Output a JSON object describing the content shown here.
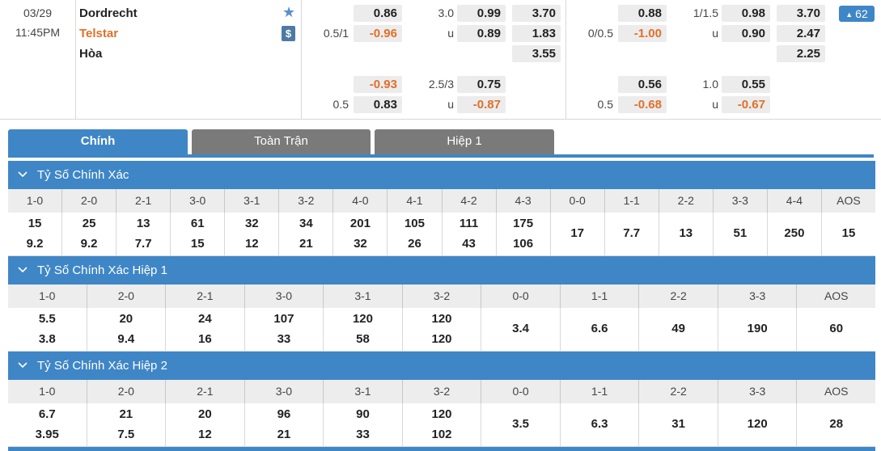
{
  "match": {
    "date": "03/29",
    "time": "11:45PM",
    "home": "Dordrecht",
    "away": "Telstar",
    "draw": "Hòa",
    "more_count": "62"
  },
  "odds": {
    "g1": {
      "r1": {
        "v1": "0.86",
        "lbl": "3.0",
        "v2": "0.99",
        "v3": "3.70"
      },
      "r2": {
        "lbl0": "0.5/1",
        "v1": "-0.96",
        "lbl": "u",
        "v2": "0.89",
        "v3": "1.83"
      },
      "r3": {
        "v3": "3.55"
      },
      "r4": {
        "v1": "-0.93",
        "lbl": "2.5/3",
        "v2": "0.75"
      },
      "r5": {
        "lbl0": "0.5",
        "v1": "0.83",
        "lbl": "u",
        "v2": "-0.87"
      }
    },
    "g2": {
      "r1": {
        "v1": "0.88",
        "lbl": "1/1.5",
        "v2": "0.98",
        "v3": "3.70"
      },
      "r2": {
        "lbl0": "0/0.5",
        "v1": "-1.00",
        "lbl": "u",
        "v2": "0.90",
        "v3": "2.47"
      },
      "r3": {
        "v3": "2.25"
      },
      "r4": {
        "v1": "0.56",
        "lbl": "1.0",
        "v2": "0.55"
      },
      "r5": {
        "lbl0": "0.5",
        "v1": "-0.68",
        "lbl": "u",
        "v2": "-0.67"
      }
    }
  },
  "tabs": [
    "Chính",
    "Toàn Trận",
    "Hiệp 1"
  ],
  "sections": [
    {
      "title": "Tỷ Số Chính Xác",
      "headers": [
        "1-0",
        "2-0",
        "2-1",
        "3-0",
        "3-1",
        "3-2",
        "4-0",
        "4-1",
        "4-2",
        "4-3",
        "0-0",
        "1-1",
        "2-2",
        "3-3",
        "4-4",
        "AOS"
      ],
      "values": [
        [
          "15",
          "9.2"
        ],
        [
          "25",
          "9.2"
        ],
        [
          "13",
          "7.7"
        ],
        [
          "61",
          "15"
        ],
        [
          "32",
          "12"
        ],
        [
          "34",
          "21"
        ],
        [
          "201",
          "32"
        ],
        [
          "105",
          "26"
        ],
        [
          "111",
          "43"
        ],
        [
          "175",
          "106"
        ],
        [
          "17"
        ],
        [
          "7.7"
        ],
        [
          "13"
        ],
        [
          "51"
        ],
        [
          "250"
        ],
        [
          "15"
        ]
      ]
    },
    {
      "title": "Tỷ Số Chính Xác Hiệp 1",
      "headers": [
        "1-0",
        "2-0",
        "2-1",
        "3-0",
        "3-1",
        "3-2",
        "0-0",
        "1-1",
        "2-2",
        "3-3",
        "AOS"
      ],
      "values": [
        [
          "5.5",
          "3.8"
        ],
        [
          "20",
          "9.4"
        ],
        [
          "24",
          "16"
        ],
        [
          "107",
          "33"
        ],
        [
          "120",
          "58"
        ],
        [
          "120",
          "120"
        ],
        [
          "3.4"
        ],
        [
          "6.6"
        ],
        [
          "49"
        ],
        [
          "190"
        ],
        [
          "60"
        ]
      ]
    },
    {
      "title": "Tỷ Số Chính Xác Hiệp 2",
      "headers": [
        "1-0",
        "2-0",
        "2-1",
        "3-0",
        "3-1",
        "3-2",
        "0-0",
        "1-1",
        "2-2",
        "3-3",
        "AOS"
      ],
      "values": [
        [
          "6.7",
          "3.95"
        ],
        [
          "21",
          "7.5"
        ],
        [
          "20",
          "12"
        ],
        [
          "96",
          "21"
        ],
        [
          "90",
          "33"
        ],
        [
          "120",
          "102"
        ],
        [
          "3.5"
        ],
        [
          "6.3"
        ],
        [
          "31"
        ],
        [
          "120"
        ],
        [
          "28"
        ]
      ]
    }
  ],
  "colors": {
    "accent": "#3f86c6",
    "away": "#e0702a",
    "tab_inactive": "#7a7a7a"
  }
}
